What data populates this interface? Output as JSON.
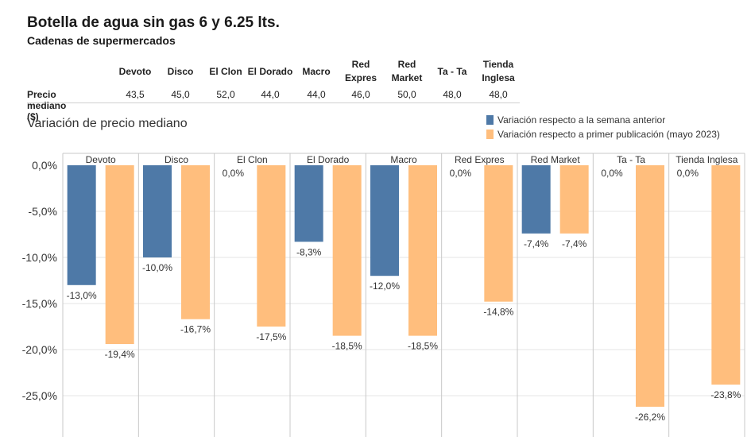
{
  "title": "Botella de agua sin gas 6 y 6.25 lts.",
  "subtitle": "Cadenas de supermercados",
  "table": {
    "row_label": "Precio mediano ($)",
    "headers": [
      [
        "Devoto"
      ],
      [
        "Disco"
      ],
      [
        "El Clon"
      ],
      [
        "El Dorado"
      ],
      [
        "Macro"
      ],
      [
        "Red",
        "Expres"
      ],
      [
        "Red",
        "Market"
      ],
      [
        "Ta - Ta"
      ],
      [
        "Tienda",
        "Inglesa"
      ]
    ],
    "values": [
      "43,5",
      "45,0",
      "52,0",
      "44,0",
      "44,0",
      "46,0",
      "50,0",
      "48,0",
      "48,0"
    ]
  },
  "section_title": "Variación de precio mediano",
  "colors": {
    "blue": "#4e79a7",
    "orange": "#ffbe7d",
    "grid": "#e6e6e6",
    "divider": "#c8c8c8"
  },
  "chart_data": {
    "type": "bar",
    "categories": [
      "Devoto",
      "Disco",
      "El Clon",
      "El Dorado",
      "Macro",
      "Red Expres",
      "Red Market",
      "Ta - Ta",
      "Tienda Inglesa"
    ],
    "series": [
      {
        "name": "Variación respecto a la semana anterior",
        "color": "#4e79a7",
        "values": [
          -13.0,
          -10.0,
          0.0,
          -8.3,
          -12.0,
          0.0,
          -7.4,
          0.0,
          0.0
        ],
        "labels": [
          "-13,0%",
          "-10,0%",
          "0,0%",
          "-8,3%",
          "-12,0%",
          "0,0%",
          "-7,4%",
          "0,0%",
          "0,0%"
        ]
      },
      {
        "name": "Variación respecto a primer publicación (mayo 2023)",
        "color": "#ffbe7d",
        "values": [
          -19.4,
          -16.7,
          -17.5,
          -18.5,
          -18.5,
          -14.8,
          -7.4,
          -26.2,
          -23.8
        ],
        "labels": [
          "-19,4%",
          "-16,7%",
          "-17,5%",
          "-18,5%",
          "-18,5%",
          "-14,8%",
          "-7,4%",
          "-26,2%",
          "-23,8%"
        ]
      }
    ],
    "yticks": [
      0,
      -5,
      -10,
      -15,
      -20,
      -25
    ],
    "ytick_labels": [
      "0,0%",
      "-5,0%",
      "-10,0%",
      "-15,0%",
      "-20,0%",
      "-25,0%"
    ],
    "ylim": [
      -29,
      0.8
    ],
    "legend": "top-right"
  }
}
